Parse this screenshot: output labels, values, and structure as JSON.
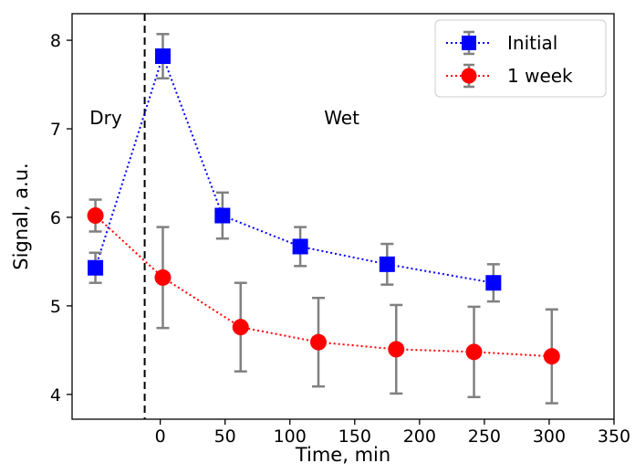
{
  "chart_data": {
    "type": "line",
    "xlabel": "Time, min",
    "ylabel": "Signal, a.u.",
    "xlim": [
      -68,
      350
    ],
    "ylim": [
      3.72,
      8.3
    ],
    "x_ticks": [
      0,
      50,
      100,
      150,
      200,
      250,
      300,
      350
    ],
    "y_ticks": [
      4,
      5,
      6,
      7,
      8
    ],
    "grid": false,
    "legend_position": "top-right",
    "divider_x": -12,
    "regions": [
      {
        "label": "Dry",
        "x": -42,
        "y": 7.05
      },
      {
        "label": "Wet",
        "x": 140,
        "y": 7.05
      }
    ],
    "series": [
      {
        "name": "Initial",
        "color": "#0000ff",
        "marker": "square",
        "points": [
          {
            "x": -50,
            "y": 5.43,
            "err": 0.17
          },
          {
            "x": 2,
            "y": 7.82,
            "err": 0.25
          },
          {
            "x": 48,
            "y": 6.02,
            "err": 0.26
          },
          {
            "x": 108,
            "y": 5.67,
            "err": 0.22
          },
          {
            "x": 175,
            "y": 5.47,
            "err": 0.23
          },
          {
            "x": 257,
            "y": 5.26,
            "err": 0.21
          }
        ]
      },
      {
        "name": "1 week",
        "color": "#ff0000",
        "marker": "circle",
        "points": [
          {
            "x": -50,
            "y": 6.02,
            "err": 0.18
          },
          {
            "x": 2,
            "y": 5.32,
            "err": 0.57
          },
          {
            "x": 62,
            "y": 4.76,
            "err": 0.5
          },
          {
            "x": 122,
            "y": 4.59,
            "err": 0.5
          },
          {
            "x": 182,
            "y": 4.51,
            "err": 0.5
          },
          {
            "x": 242,
            "y": 4.48,
            "err": 0.51
          },
          {
            "x": 302,
            "y": 4.43,
            "err": 0.53
          }
        ]
      }
    ]
  }
}
